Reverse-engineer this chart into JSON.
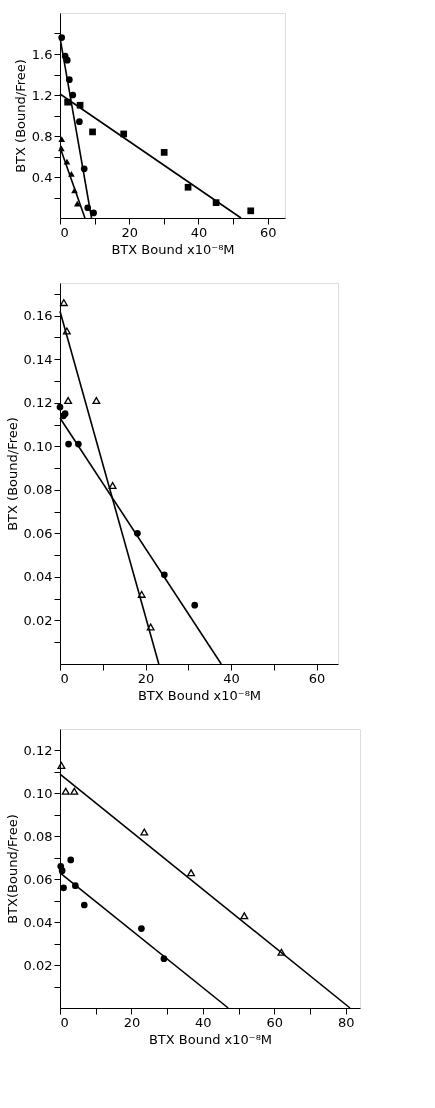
{
  "chart_data": [
    {
      "type": "scatter",
      "xlabel": "BTX Bound x10⁻⁸M",
      "ylabel": "BTX (Bound/Free)",
      "xlim": [
        0,
        65
      ],
      "ylim": [
        0,
        2.0
      ],
      "xticks": [
        0,
        {
          "value": 10,
          "label": null
        },
        20,
        {
          "value": 30,
          "label": null
        },
        40,
        {
          "value": 50,
          "label": null
        },
        60
      ],
      "yticks": [
        {
          "value": 0.2,
          "label": null
        },
        0.4,
        {
          "value": 0.6,
          "label": null
        },
        0.8,
        {
          "value": 1.0,
          "label": null
        },
        1.2,
        {
          "value": 1.4,
          "label": null
        },
        1.6,
        {
          "value": 1.8,
          "label": null
        }
      ],
      "grid": false,
      "series": [
        {
          "marker": "circle",
          "color": "#000000",
          "x": [
            0.5,
            1.5,
            2.1,
            2.7,
            3.7,
            5.6,
            7.0,
            8.0,
            9.7
          ],
          "values": [
            1.76,
            1.58,
            1.54,
            1.35,
            1.2,
            0.94,
            0.48,
            0.1,
            0.05
          ]
        },
        {
          "marker": "square",
          "color": "#000000",
          "x": [
            2.2,
            5.8,
            9.4,
            18.4,
            30.1,
            37.0,
            45.1,
            55.1
          ],
          "values": [
            1.13,
            1.1,
            0.84,
            0.82,
            0.64,
            0.3,
            0.15,
            0.07
          ]
        },
        {
          "marker": "triangle",
          "color": "#000000",
          "x": [
            0.5,
            0.4,
            2.0,
            3.3,
            4.2,
            5.0
          ],
          "values": [
            0.77,
            0.68,
            0.55,
            0.43,
            0.27,
            0.14
          ]
        },
        {
          "type": "line",
          "color": "#000000",
          "x": [
            0,
            9.1
          ],
          "values": [
            1.76,
            0
          ]
        },
        {
          "type": "line",
          "color": "#000000",
          "x": [
            0,
            52.3
          ],
          "values": [
            1.21,
            0
          ]
        },
        {
          "type": "line",
          "color": "#000000",
          "x": [
            0,
            7.2
          ],
          "values": [
            0.69,
            0
          ]
        }
      ]
    },
    {
      "type": "scatter",
      "xlabel": "BTX Bound x10⁻⁸M",
      "ylabel": "BTX (Bound/Free)",
      "xlim": [
        0,
        65
      ],
      "ylim": [
        0,
        0.175
      ],
      "xticks": [
        0,
        {
          "value": 10,
          "label": null
        },
        20,
        {
          "value": 30,
          "label": null
        },
        40,
        {
          "value": 50,
          "label": null
        },
        60
      ],
      "yticks": [
        {
          "value": 0.01,
          "label": null
        },
        0.02,
        {
          "value": 0.03,
          "label": null
        },
        0.04,
        {
          "value": 0.05,
          "label": null
        },
        0.06,
        {
          "value": 0.07,
          "label": null
        },
        0.08,
        {
          "value": 0.09,
          "label": null
        },
        {
          "value": 0.1,
          "label": "0.10"
        },
        {
          "value": 0.11,
          "label": null
        },
        0.12,
        {
          "value": 0.13,
          "label": null
        },
        0.14,
        {
          "value": 0.15,
          "label": null
        },
        0.16,
        {
          "value": 0.17,
          "label": null
        }
      ],
      "grid": false,
      "series": [
        {
          "marker": "triangle-open",
          "color": "#000000",
          "x": [
            0.9,
            1.6,
            1.9,
            8.5,
            12.3,
            19.1,
            21.2
          ],
          "values": [
            0.166,
            0.153,
            0.121,
            0.121,
            0.082,
            0.032,
            0.017
          ]
        },
        {
          "marker": "circle",
          "color": "#000000",
          "x": [
            0,
            0.8,
            1.2,
            2.0,
            4.3,
            18.1,
            24.4,
            31.5
          ],
          "values": [
            0.118,
            0.114,
            0.115,
            0.101,
            0.101,
            0.06,
            0.041,
            0.027
          ]
        },
        {
          "type": "line",
          "color": "#000000",
          "x": [
            0,
            23.1
          ],
          "values": [
            0.162,
            0
          ]
        },
        {
          "type": "line",
          "color": "#000000",
          "x": [
            0,
            37.7
          ],
          "values": [
            0.113,
            0
          ]
        }
      ]
    },
    {
      "type": "scatter",
      "xlabel": "BTX Bound x10⁻⁸M",
      "ylabel": "BTX(Bound/Free)",
      "xlim": [
        0,
        84
      ],
      "ylim": [
        0,
        0.13
      ],
      "xticks": [
        0,
        {
          "value": 10,
          "label": null
        },
        20,
        {
          "value": 30,
          "label": null
        },
        40,
        {
          "value": 50,
          "label": null
        },
        60,
        {
          "value": 70,
          "label": null
        },
        80
      ],
      "yticks": [
        {
          "value": 0.01,
          "label": null
        },
        0.02,
        {
          "value": 0.03,
          "label": null
        },
        0.04,
        {
          "value": 0.05,
          "label": null
        },
        0.06,
        {
          "value": 0.07,
          "label": null
        },
        0.08,
        {
          "value": 0.09,
          "label": null
        },
        {
          "value": 0.1,
          "label": "0.10"
        },
        {
          "value": 0.11,
          "label": null
        },
        0.12
      ],
      "grid": false,
      "series": [
        {
          "marker": "triangle-open",
          "color": "#000000",
          "x": [
            0.4,
            1.6,
            4.0,
            23.6,
            36.7,
            51.6,
            62.0
          ],
          "values": [
            0.113,
            0.101,
            0.101,
            0.082,
            0.063,
            0.043,
            0.026
          ]
        },
        {
          "marker": "circle",
          "color": "#000000",
          "x": [
            0.2,
            0.6,
            3.0,
            1.0,
            4.3,
            6.8,
            22.8,
            29.1
          ],
          "values": [
            0.066,
            0.064,
            0.069,
            0.056,
            0.057,
            0.048,
            0.037,
            0.023
          ]
        },
        {
          "type": "line",
          "color": "#000000",
          "x": [
            0,
            81.2
          ],
          "values": [
            0.109,
            0
          ]
        },
        {
          "type": "line",
          "color": "#000000",
          "x": [
            0,
            47.1
          ],
          "values": [
            0.063,
            0
          ]
        }
      ]
    }
  ]
}
